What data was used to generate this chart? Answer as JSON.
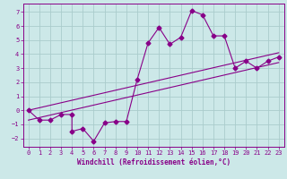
{
  "xlabel": "Windchill (Refroidissement éolien,°C)",
  "ylabel": "",
  "bg_color": "#cce8e8",
  "grid_color": "#aacccc",
  "line_color": "#880088",
  "xlim": [
    -0.5,
    23.5
  ],
  "ylim": [
    -2.6,
    7.6
  ],
  "xticks": [
    0,
    1,
    2,
    3,
    4,
    5,
    6,
    7,
    8,
    9,
    10,
    11,
    12,
    13,
    14,
    15,
    16,
    17,
    18,
    19,
    20,
    21,
    22,
    23
  ],
  "yticks": [
    -2,
    -1,
    0,
    1,
    2,
    3,
    4,
    5,
    6,
    7
  ],
  "scatter_x": [
    0,
    1,
    2,
    3,
    4,
    4,
    5,
    6,
    7,
    8,
    9,
    10,
    11,
    12,
    13,
    14,
    15,
    16,
    17,
    18,
    19,
    20,
    21,
    22,
    23
  ],
  "scatter_y": [
    0.0,
    -0.7,
    -0.7,
    -0.3,
    -0.3,
    -1.5,
    -1.3,
    -2.2,
    -0.9,
    -0.8,
    -0.8,
    2.2,
    4.8,
    5.9,
    4.7,
    5.2,
    7.1,
    6.8,
    5.3,
    5.3,
    3.0,
    3.5,
    3.0,
    3.5,
    3.8
  ],
  "line1_x": [
    0,
    23
  ],
  "line1_y": [
    0.0,
    4.1
  ],
  "line2_x": [
    0,
    23
  ],
  "line2_y": [
    -0.7,
    3.4
  ],
  "font_size_axis": 5.5,
  "font_size_tick": 5.0,
  "marker_size": 2.5
}
